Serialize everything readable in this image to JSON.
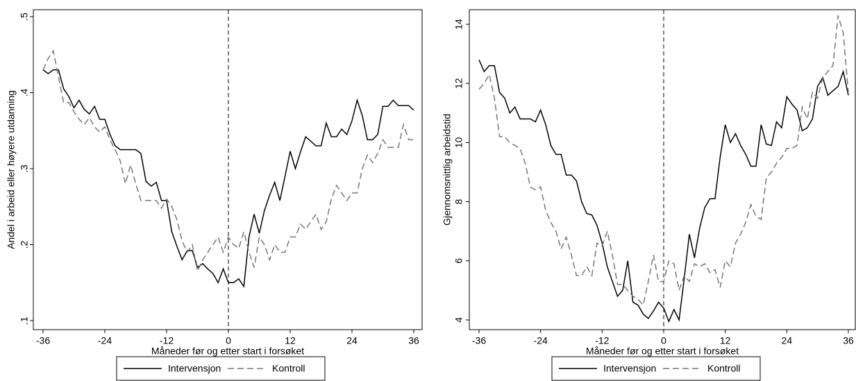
{
  "chart_data": [
    {
      "type": "line",
      "y_label": "Andel i arbeid eller høyere utdanning",
      "x_label": "Måneder før og etter start i forsøket",
      "x": [
        -36,
        -35,
        -34,
        -33,
        -32,
        -31,
        -30,
        -29,
        -28,
        -27,
        -26,
        -25,
        -24,
        -23,
        -22,
        -21,
        -20,
        -19,
        -18,
        -17,
        -16,
        -15,
        -14,
        -13,
        -12,
        -11,
        -10,
        -9,
        -8,
        -7,
        -6,
        -5,
        -4,
        -3,
        -2,
        -1,
        0,
        1,
        2,
        3,
        4,
        5,
        6,
        7,
        8,
        9,
        10,
        11,
        12,
        13,
        14,
        15,
        16,
        17,
        18,
        19,
        20,
        21,
        22,
        23,
        24,
        25,
        26,
        27,
        28,
        29,
        30,
        31,
        32,
        33,
        34,
        35,
        36
      ],
      "xlim": [
        -36,
        36
      ],
      "xticks": [
        -36,
        -24,
        -12,
        0,
        12,
        24,
        36
      ],
      "vline": 0,
      "ylim": [
        0.1,
        0.5
      ],
      "yticks": [
        {
          "value": 0.1,
          "label": ".1"
        },
        {
          "value": 0.2,
          "label": ".2"
        },
        {
          "value": 0.3,
          "label": ".3"
        },
        {
          "value": 0.4,
          "label": ".4"
        },
        {
          "value": 0.5,
          "label": ".5"
        }
      ],
      "series": [
        {
          "name": "Intervensjon",
          "color": "#000000",
          "dash": false,
          "values": [
            0.43,
            0.425,
            0.43,
            0.43,
            0.405,
            0.395,
            0.38,
            0.39,
            0.378,
            0.372,
            0.382,
            0.365,
            0.365,
            0.345,
            0.33,
            0.325,
            0.325,
            0.325,
            0.325,
            0.32,
            0.283,
            0.277,
            0.282,
            0.258,
            0.258,
            0.217,
            0.198,
            0.18,
            0.192,
            0.192,
            0.17,
            0.175,
            0.168,
            0.162,
            0.15,
            0.168,
            0.15,
            0.15,
            0.155,
            0.145,
            0.21,
            0.24,
            0.215,
            0.245,
            0.265,
            0.282,
            0.258,
            0.29,
            0.323,
            0.3,
            0.322,
            0.342,
            0.336,
            0.33,
            0.33,
            0.36,
            0.342,
            0.342,
            0.352,
            0.345,
            0.363,
            0.39,
            0.37,
            0.338,
            0.338,
            0.345,
            0.382,
            0.382,
            0.39,
            0.383,
            0.383,
            0.383,
            0.377
          ]
        },
        {
          "name": "Kontroll",
          "color": "#777777",
          "dash": true,
          "values": [
            0.43,
            0.445,
            0.455,
            0.42,
            0.387,
            0.387,
            0.375,
            0.365,
            0.358,
            0.367,
            0.355,
            0.348,
            0.355,
            0.338,
            0.325,
            0.31,
            0.28,
            0.305,
            0.28,
            0.258,
            0.258,
            0.258,
            0.258,
            0.248,
            0.26,
            0.25,
            0.233,
            0.205,
            0.19,
            0.2,
            0.165,
            0.18,
            0.19,
            0.2,
            0.21,
            0.19,
            0.21,
            0.2,
            0.195,
            0.217,
            0.19,
            0.17,
            0.21,
            0.2,
            0.18,
            0.2,
            0.19,
            0.19,
            0.21,
            0.21,
            0.227,
            0.22,
            0.23,
            0.24,
            0.22,
            0.23,
            0.26,
            0.278,
            0.268,
            0.258,
            0.268,
            0.268,
            0.3,
            0.318,
            0.308,
            0.32,
            0.338,
            0.328,
            0.328,
            0.328,
            0.358,
            0.338,
            0.338
          ]
        }
      ]
    },
    {
      "type": "line",
      "y_label": "Gjennomsnittlig arbeidstid",
      "x_label": "Måneder før og etter start i forsøket",
      "x": [
        -36,
        -35,
        -34,
        -33,
        -32,
        -31,
        -30,
        -29,
        -28,
        -27,
        -26,
        -25,
        -24,
        -23,
        -22,
        -21,
        -20,
        -19,
        -18,
        -17,
        -16,
        -15,
        -14,
        -13,
        -12,
        -11,
        -10,
        -9,
        -8,
        -7,
        -6,
        -5,
        -4,
        -3,
        -2,
        -1,
        0,
        1,
        2,
        3,
        4,
        5,
        6,
        7,
        8,
        9,
        10,
        11,
        12,
        13,
        14,
        15,
        16,
        17,
        18,
        19,
        20,
        21,
        22,
        23,
        24,
        25,
        26,
        27,
        28,
        29,
        30,
        31,
        32,
        33,
        34,
        35,
        36
      ],
      "xlim": [
        -36,
        36
      ],
      "xticks": [
        -36,
        -24,
        -12,
        0,
        12,
        24,
        36
      ],
      "vline": 0,
      "ylim": [
        4,
        14
      ],
      "yticks": [
        4,
        6,
        8,
        10,
        12,
        14
      ],
      "series": [
        {
          "name": "Intervensjon",
          "color": "#000000",
          "dash": false,
          "values": [
            12.8,
            12.4,
            12.6,
            12.6,
            11.7,
            11.5,
            11,
            11.2,
            10.8,
            10.8,
            10.8,
            10.7,
            11.1,
            10.6,
            9.9,
            9.6,
            9.6,
            8.9,
            8.9,
            8.7,
            8,
            7.6,
            7.55,
            7.2,
            6.6,
            5.8,
            5.3,
            4.8,
            5,
            6,
            4.6,
            4.5,
            4.2,
            4.05,
            4.3,
            4.6,
            4.4,
            3.95,
            4.35,
            4,
            5.4,
            6.9,
            6.1,
            7.1,
            7.8,
            8.1,
            8.1,
            9.5,
            10.6,
            10,
            10.3,
            9.9,
            9.6,
            9.2,
            9.2,
            10.6,
            9.95,
            9.9,
            10.7,
            10.5,
            11.55,
            11.3,
            11.1,
            10.4,
            10.5,
            10.8,
            11.9,
            12.2,
            11.6,
            11.75,
            11.9,
            12.4,
            11.6
          ]
        },
        {
          "name": "Kontroll",
          "color": "#777777",
          "dash": true,
          "values": [
            11.8,
            12,
            12.3,
            11.5,
            10.2,
            10.2,
            10,
            9.9,
            9.8,
            9.3,
            8.5,
            8.4,
            8.5,
            7.7,
            7.3,
            7,
            6.4,
            6.8,
            6.2,
            5.5,
            5.5,
            5.8,
            5.5,
            6.6,
            6.5,
            7,
            6.2,
            5.2,
            5.2,
            5,
            4.8,
            4.7,
            4.5,
            5.3,
            6.2,
            5.3,
            5.3,
            6,
            5.9,
            5,
            5.5,
            5.3,
            5.9,
            5.8,
            5.9,
            5.6,
            5.7,
            5.1,
            6,
            5.8,
            6.6,
            6.9,
            7.3,
            7.9,
            7.5,
            7.4,
            8.8,
            9,
            9.3,
            9.5,
            9.8,
            9.8,
            9.9,
            11.2,
            10.8,
            11.7,
            11.5,
            12.2,
            12.4,
            12.6,
            14.3,
            13.7,
            11.7
          ]
        }
      ]
    }
  ]
}
